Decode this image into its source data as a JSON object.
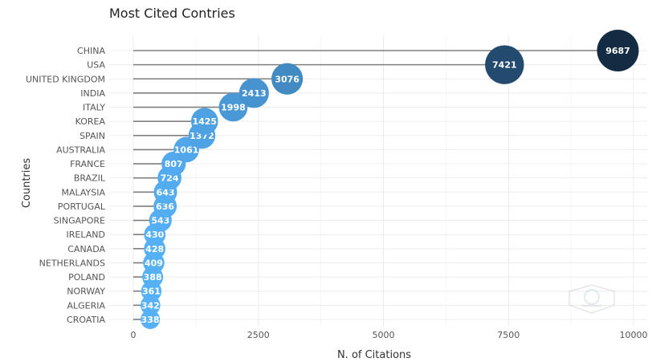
{
  "chart_data": {
    "type": "scatter",
    "title": "Most Cited Contries",
    "xlabel": "N. of Citations",
    "ylabel": "Countries",
    "xlim": [
      -800,
      10200
    ],
    "x_ticks": [
      0,
      2500,
      5000,
      7500,
      10000
    ],
    "grid": true,
    "categories": [
      "CHINA",
      "USA",
      "UNITED KINGDOM",
      "INDIA",
      "ITALY",
      "KOREA",
      "SPAIN",
      "AUSTRALIA",
      "FRANCE",
      "BRAZIL",
      "MALAYSIA",
      "PORTUGAL",
      "SINGAPORE",
      "IRELAND",
      "CANADA",
      "NETHERLANDS",
      "POLAND",
      "NORWAY",
      "ALGERIA",
      "CROATIA"
    ],
    "values": [
      9687,
      7421,
      3076,
      2413,
      1998,
      1425,
      1372,
      1061,
      807,
      724,
      643,
      636,
      543,
      430,
      428,
      409,
      388,
      361,
      342,
      338
    ],
    "color_low": "#56b1f7",
    "color_high": "#132b43",
    "stem_color": "#7f7f7f"
  }
}
